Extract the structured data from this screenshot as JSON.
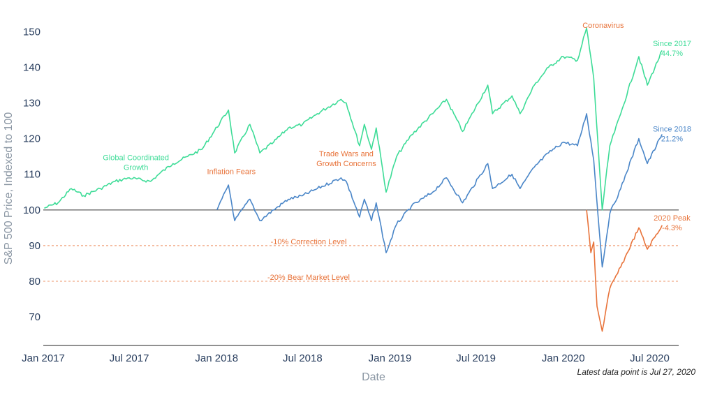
{
  "chart_data": {
    "type": "line",
    "title": "",
    "xlabel": "Date",
    "ylabel": "S&P 500 Price, Indexed to 100",
    "x_range": [
      "2017-01-01",
      "2020-08-31"
    ],
    "ylim": [
      62,
      153
    ],
    "x_ticks": [
      "Jan 2017",
      "Jul 2017",
      "Jan 2018",
      "Jul 2018",
      "Jan 2019",
      "Jul 2019",
      "Jan 2020",
      "Jul 2020"
    ],
    "y_ticks": [
      70,
      80,
      90,
      100,
      110,
      120,
      130,
      140,
      150
    ],
    "grid": false,
    "legend": "none",
    "series": [
      {
        "color": "#3ddc97",
        "points": [
          [
            "2017-01-03",
            100.5
          ],
          [
            "2017-02-01",
            102
          ],
          [
            "2017-03-01",
            106
          ],
          [
            "2017-03-27",
            104
          ],
          [
            "2017-05-01",
            106
          ],
          [
            "2017-06-01",
            108
          ],
          [
            "2017-07-01",
            109
          ],
          [
            "2017-08-15",
            108
          ],
          [
            "2017-09-01",
            110
          ],
          [
            "2017-10-01",
            113
          ],
          [
            "2017-11-01",
            115
          ],
          [
            "2017-12-01",
            117
          ],
          [
            "2018-01-26",
            128
          ],
          [
            "2018-02-08",
            116
          ],
          [
            "2018-03-12",
            124
          ],
          [
            "2018-04-02",
            116
          ],
          [
            "2018-05-01",
            119
          ],
          [
            "2018-06-01",
            123
          ],
          [
            "2018-07-01",
            124
          ],
          [
            "2018-08-01",
            127
          ],
          [
            "2018-09-20",
            131
          ],
          [
            "2018-10-01",
            130
          ],
          [
            "2018-10-29",
            118
          ],
          [
            "2018-11-08",
            124
          ],
          [
            "2018-11-23",
            117
          ],
          [
            "2018-12-03",
            123
          ],
          [
            "2018-12-24",
            105
          ],
          [
            "2019-01-15",
            115
          ],
          [
            "2019-02-15",
            121
          ],
          [
            "2019-04-01",
            127
          ],
          [
            "2019-04-30",
            131
          ],
          [
            "2019-06-03",
            122
          ],
          [
            "2019-07-26",
            135
          ],
          [
            "2019-08-05",
            127
          ],
          [
            "2019-09-15",
            132
          ],
          [
            "2019-10-02",
            127
          ],
          [
            "2019-11-01",
            135
          ],
          [
            "2019-12-01",
            140
          ],
          [
            "2020-01-01",
            143
          ],
          [
            "2020-01-31",
            142
          ],
          [
            "2020-02-19",
            151
          ],
          [
            "2020-03-05",
            137
          ],
          [
            "2020-03-23",
            100
          ],
          [
            "2020-04-08",
            118
          ],
          [
            "2020-05-01",
            127
          ],
          [
            "2020-06-08",
            143
          ],
          [
            "2020-06-26",
            135
          ],
          [
            "2020-07-27",
            144.7
          ]
        ]
      },
      {
        "color": "#4a86c8",
        "points": [
          [
            "2018-01-02",
            100
          ],
          [
            "2018-01-26",
            107
          ],
          [
            "2018-02-08",
            97
          ],
          [
            "2018-03-12",
            103
          ],
          [
            "2018-04-02",
            97
          ],
          [
            "2018-05-01",
            100
          ],
          [
            "2018-06-01",
            103
          ],
          [
            "2018-07-01",
            104
          ],
          [
            "2018-08-01",
            106
          ],
          [
            "2018-09-20",
            109
          ],
          [
            "2018-10-01",
            108
          ],
          [
            "2018-10-29",
            98
          ],
          [
            "2018-11-08",
            103
          ],
          [
            "2018-11-23",
            97
          ],
          [
            "2018-12-03",
            102
          ],
          [
            "2018-12-24",
            88
          ],
          [
            "2019-01-15",
            96
          ],
          [
            "2019-02-15",
            101
          ],
          [
            "2019-04-01",
            105
          ],
          [
            "2019-04-30",
            109
          ],
          [
            "2019-06-03",
            102
          ],
          [
            "2019-07-26",
            113
          ],
          [
            "2019-08-05",
            106
          ],
          [
            "2019-09-15",
            110
          ],
          [
            "2019-10-02",
            106
          ],
          [
            "2019-11-01",
            112
          ],
          [
            "2019-12-01",
            116
          ],
          [
            "2020-01-01",
            119
          ],
          [
            "2020-01-31",
            118
          ],
          [
            "2020-02-19",
            127
          ],
          [
            "2020-03-05",
            114
          ],
          [
            "2020-03-23",
            84
          ],
          [
            "2020-04-08",
            99
          ],
          [
            "2020-05-01",
            106
          ],
          [
            "2020-06-08",
            120
          ],
          [
            "2020-06-26",
            113
          ],
          [
            "2020-07-27",
            121.2
          ]
        ]
      },
      {
        "color": "#e8733a",
        "points": [
          [
            "2020-02-19",
            100
          ],
          [
            "2020-02-28",
            88
          ],
          [
            "2020-03-05",
            91
          ],
          [
            "2020-03-12",
            73
          ],
          [
            "2020-03-23",
            66
          ],
          [
            "2020-04-08",
            78
          ],
          [
            "2020-05-01",
            84
          ],
          [
            "2020-06-08",
            95
          ],
          [
            "2020-06-26",
            89
          ],
          [
            "2020-07-27",
            95.7
          ]
        ]
      }
    ],
    "reference_lines": [
      {
        "y": 100,
        "style": "solid",
        "color": "#333333"
      },
      {
        "y": 90,
        "style": "dashed",
        "color": "#e8733a",
        "label": "-10% Correction Level"
      },
      {
        "y": 80,
        "style": "dashed",
        "color": "#e8733a",
        "label": "-20% Bear Market Level"
      }
    ],
    "annotations": [
      {
        "lines": [
          "Global Coordinated",
          "Growth"
        ],
        "x": "2017-07-15",
        "y": 114,
        "color": "#3ddc97"
      },
      {
        "lines": [
          "Inflation Fears"
        ],
        "x": "2018-02-01",
        "y": 110,
        "color": "#e8733a"
      },
      {
        "lines": [
          "Trade Wars and",
          "Growth Concerns"
        ],
        "x": "2018-10-01",
        "y": 115,
        "color": "#e8733a"
      },
      {
        "lines": [
          "Coronavirus"
        ],
        "x": "2020-03-25",
        "y": 151,
        "color": "#e8733a"
      },
      {
        "lines": [
          "Since 2017",
          "44.7%"
        ],
        "x": "2020-08-17",
        "y": 146,
        "color": "#3ddc97"
      },
      {
        "lines": [
          "Since 2018",
          "21.2%"
        ],
        "x": "2020-08-17",
        "y": 122,
        "color": "#4a86c8"
      },
      {
        "lines": [
          "2020 Peak",
          "-4.3%"
        ],
        "x": "2020-08-17",
        "y": 97,
        "color": "#e8733a"
      }
    ],
    "note": "Latest data point is Jul 27, 2020"
  }
}
